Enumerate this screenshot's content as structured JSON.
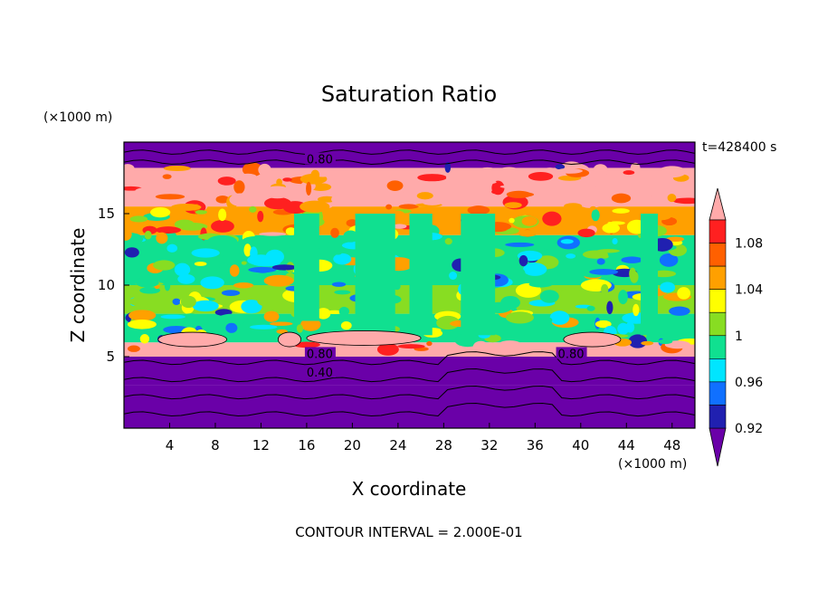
{
  "chart_data": {
    "type": "heatmap",
    "title": "Saturation Ratio",
    "xlabel": "X coordinate",
    "ylabel": "Z coordinate",
    "x_unit": "(×1000 m)",
    "y_unit": "(×1000 m)",
    "time_label": "t=428400 s",
    "footer": "CONTOUR INTERVAL = 2.000E-01",
    "xlim": [
      0,
      50
    ],
    "ylim": [
      0,
      20
    ],
    "x_ticks": [
      4,
      8,
      12,
      16,
      20,
      24,
      28,
      32,
      36,
      40,
      44,
      48
    ],
    "y_ticks": [
      5,
      10,
      15
    ],
    "colorbar": {
      "labels": [
        "1.08",
        "1.04",
        "1",
        "0.96",
        "0.92"
      ],
      "colors": [
        "#6a00a8",
        "#2020b0",
        "#1070ff",
        "#00e5ff",
        "#10e090",
        "#88dd22",
        "#ffff00",
        "#ffa000",
        "#ff6000",
        "#ff2020",
        "#ffaaaa"
      ]
    },
    "contour_labels": [
      {
        "text": "0.80",
        "x": 16,
        "z": 18.7
      },
      {
        "text": "0.80",
        "x": 16,
        "z": 5.1
      },
      {
        "text": "0.40",
        "x": 16,
        "z": 3.8
      },
      {
        "text": "0.80",
        "x": 38,
        "z": 5.1
      }
    ],
    "layers": [
      {
        "z0": 0.0,
        "z1": 3.0,
        "level": 0
      },
      {
        "z0": 3.0,
        "z1": 5.0,
        "level": 0
      },
      {
        "z0": 5.0,
        "z1": 6.0,
        "level": 10
      },
      {
        "z0": 6.0,
        "z1": 8.0,
        "level": 4
      },
      {
        "z0": 8.0,
        "z1": 10.0,
        "level": 5
      },
      {
        "z0": 10.0,
        "z1": 13.5,
        "level": 4
      },
      {
        "z0": 13.5,
        "z1": 15.5,
        "level": 7
      },
      {
        "z0": 15.5,
        "z1": 18.2,
        "level": 10
      },
      {
        "z0": 18.2,
        "z1": 20.0,
        "level": 0
      }
    ]
  }
}
